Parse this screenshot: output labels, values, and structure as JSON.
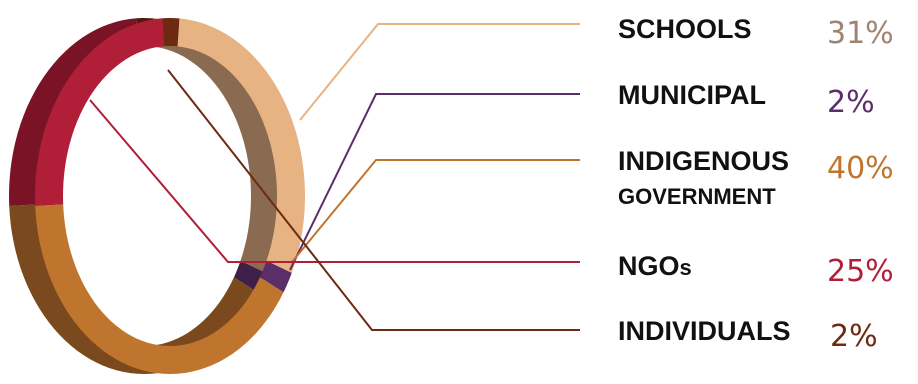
{
  "chart_data": {
    "type": "pie",
    "style": "3d ring",
    "title": "",
    "series": [
      {
        "label": "SCHOOLS",
        "value": 31,
        "value_text": "31%",
        "color": "#E8B383",
        "shade": "#8A6B51",
        "text_color": "#A08270"
      },
      {
        "label": "MUNICIPAL",
        "value": 2,
        "value_text": "2%",
        "color": "#5C2E68",
        "shade": "#3E1F47",
        "text_color": "#5C2E68"
      },
      {
        "label": "INDIGENOUS GOVERNMENT",
        "label_lines": [
          "INDIGENOUS",
          "GOVERNMENT"
        ],
        "value": 40,
        "value_text": "40%",
        "color": "#C0752F",
        "shade": "#7A4A1E",
        "text_color": "#C0752F"
      },
      {
        "label": "NGOs",
        "label_main": "NGO",
        "label_suffix": "s",
        "value": 25,
        "value_text": "25%",
        "color": "#B01E38",
        "shade": "#7A1325",
        "text_color": "#B01E38"
      },
      {
        "label": "INDIVIDUALS",
        "value": 2,
        "value_text": "2%",
        "color": "#6E2A10",
        "shade": "#4E1D0B",
        "text_color": "#6E2A10"
      }
    ],
    "legend_placement": "right"
  }
}
